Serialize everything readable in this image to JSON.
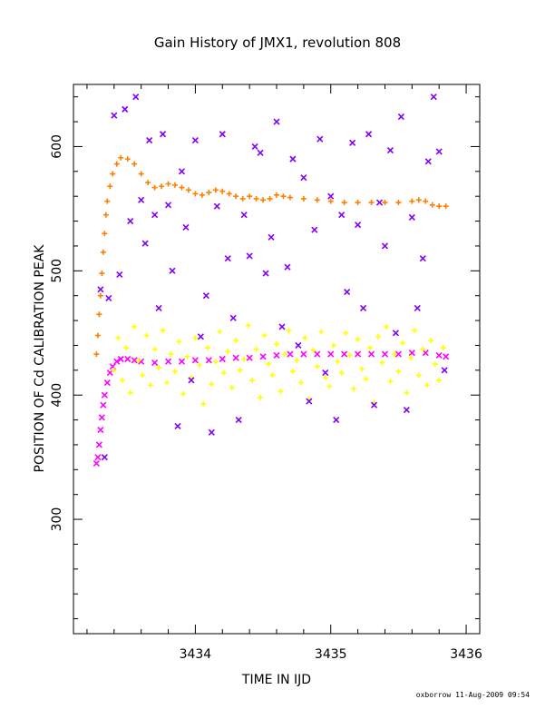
{
  "chart_data": {
    "type": "scatter",
    "title": "Gain History of JMX1, revolution 808",
    "xlabel": "TIME IN IJD",
    "ylabel": "POSITION OF Cd CALIBRATION PEAK",
    "xlim": [
      3433.1,
      3436.1
    ],
    "ylim": [
      208,
      650
    ],
    "xticks": [
      3434,
      3435,
      3436
    ],
    "xtick_labels": [
      "3434",
      "3435",
      "3436"
    ],
    "yticks": [
      300,
      400,
      500,
      600
    ],
    "ytick_labels": [
      "300",
      "400",
      "500",
      "600"
    ],
    "footer": "oxborrow 11-Aug-2009 09:54",
    "colors": {
      "orange": "#ff7f00",
      "magenta": "#ff00ff",
      "yellow": "#ffff00",
      "purple": "#7f00ff"
    },
    "series": [
      {
        "marker": "plus",
        "color": "#ff7f00",
        "x": [
          3433.27,
          3433.28,
          3433.29,
          3433.3,
          3433.31,
          3433.32,
          3433.33,
          3433.34,
          3433.35,
          3433.37,
          3433.39,
          3433.42,
          3433.45,
          3433.5,
          3433.55,
          3433.6,
          3433.65,
          3433.7,
          3433.75,
          3433.8,
          3433.85,
          3433.9,
          3433.95,
          3434.0,
          3434.05,
          3434.1,
          3434.15,
          3434.2,
          3434.25,
          3434.3,
          3434.35,
          3434.4,
          3434.45,
          3434.5,
          3434.55,
          3434.6,
          3434.65,
          3434.7,
          3434.8,
          3434.9,
          3435.0,
          3435.1,
          3435.2,
          3435.3,
          3435.4,
          3435.5,
          3435.6,
          3435.65,
          3435.7,
          3435.75,
          3435.8,
          3435.85
        ],
        "y": [
          433,
          448,
          465,
          480,
          498,
          515,
          530,
          545,
          556,
          568,
          578,
          586,
          591,
          590,
          586,
          578,
          571,
          567,
          568,
          570,
          569,
          567,
          565,
          562,
          561,
          563,
          565,
          564,
          562,
          560,
          558,
          560,
          558,
          557,
          558,
          561,
          560,
          559,
          558,
          557,
          556,
          555,
          555,
          555,
          555,
          555,
          556,
          557,
          556,
          553,
          552,
          552
        ]
      },
      {
        "marker": "cross",
        "color": "#ff00ff",
        "x": [
          3433.27,
          3433.28,
          3433.29,
          3433.3,
          3433.31,
          3433.32,
          3433.33,
          3433.35,
          3433.37,
          3433.39,
          3433.42,
          3433.45,
          3433.5,
          3433.55,
          3433.6,
          3433.7,
          3433.8,
          3433.9,
          3434.0,
          3434.1,
          3434.2,
          3434.3,
          3434.4,
          3434.5,
          3434.6,
          3434.7,
          3434.8,
          3434.9,
          3435.0,
          3435.1,
          3435.2,
          3435.3,
          3435.4,
          3435.5,
          3435.6,
          3435.7,
          3435.8,
          3435.85
        ],
        "y": [
          345,
          350,
          360,
          372,
          382,
          392,
          400,
          410,
          418,
          423,
          427,
          429,
          429,
          428,
          427,
          426,
          427,
          427,
          428,
          428,
          429,
          430,
          430,
          431,
          432,
          433,
          433,
          433,
          433,
          433,
          433,
          433,
          433,
          433,
          434,
          434,
          432,
          431
        ]
      },
      {
        "marker": "plus",
        "color": "#ffff00",
        "x": [
          3433.4,
          3433.43,
          3433.46,
          3433.49,
          3433.52,
          3433.55,
          3433.58,
          3433.61,
          3433.64,
          3433.67,
          3433.7,
          3433.73,
          3433.76,
          3433.79,
          3433.82,
          3433.85,
          3433.88,
          3433.91,
          3433.94,
          3433.97,
          3434.0,
          3434.03,
          3434.06,
          3434.09,
          3434.12,
          3434.15,
          3434.18,
          3434.21,
          3434.24,
          3434.27,
          3434.3,
          3434.33,
          3434.36,
          3434.39,
          3434.42,
          3434.45,
          3434.48,
          3434.51,
          3434.54,
          3434.57,
          3434.6,
          3434.63,
          3434.66,
          3434.69,
          3434.72,
          3434.75,
          3434.78,
          3434.81,
          3434.84,
          3434.87,
          3434.9,
          3434.93,
          3434.96,
          3434.99,
          3435.02,
          3435.05,
          3435.08,
          3435.11,
          3435.14,
          3435.17,
          3435.2,
          3435.23,
          3435.26,
          3435.29,
          3435.32,
          3435.35,
          3435.38,
          3435.41,
          3435.44,
          3435.47,
          3435.5,
          3435.53,
          3435.56,
          3435.59,
          3435.62,
          3435.65,
          3435.68,
          3435.71,
          3435.74,
          3435.77,
          3435.8,
          3435.83
        ],
        "y": [
          420,
          446,
          412,
          438,
          402,
          455,
          428,
          416,
          448,
          408,
          437,
          422,
          452,
          410,
          433,
          419,
          443,
          401,
          431,
          414,
          446,
          424,
          393,
          438,
          409,
          427,
          451,
          418,
          435,
          406,
          444,
          420,
          429,
          456,
          412,
          437,
          398,
          448,
          425,
          416,
          441,
          403,
          433,
          452,
          419,
          428,
          410,
          446,
          397,
          436,
          423,
          451,
          414,
          407,
          440,
          427,
          418,
          450,
          432,
          405,
          445,
          421,
          413,
          438,
          394,
          447,
          426,
          455,
          411,
          433,
          419,
          442,
          402,
          430,
          452,
          416,
          437,
          408,
          444,
          425,
          412,
          438
        ]
      },
      {
        "marker": "cross",
        "color": "#7f00ff",
        "x": [
          3433.3,
          3433.33,
          3433.36,
          3433.4,
          3433.44,
          3433.48,
          3433.52,
          3433.56,
          3433.6,
          3433.63,
          3433.66,
          3433.7,
          3433.73,
          3433.76,
          3433.8,
          3433.83,
          3433.87,
          3433.9,
          3433.93,
          3433.97,
          3434.0,
          3434.04,
          3434.08,
          3434.12,
          3434.16,
          3434.2,
          3434.24,
          3434.28,
          3434.32,
          3434.36,
          3434.4,
          3434.44,
          3434.48,
          3434.52,
          3434.56,
          3434.6,
          3434.64,
          3434.68,
          3434.72,
          3434.76,
          3434.8,
          3434.84,
          3434.88,
          3434.92,
          3434.96,
          3435.0,
          3435.04,
          3435.08,
          3435.12,
          3435.16,
          3435.2,
          3435.24,
          3435.28,
          3435.32,
          3435.36,
          3435.4,
          3435.44,
          3435.48,
          3435.52,
          3435.56,
          3435.6,
          3435.64,
          3435.68,
          3435.72,
          3435.76,
          3435.8,
          3435.84
        ],
        "y": [
          485,
          350,
          478,
          625,
          497,
          630,
          540,
          640,
          557,
          522,
          605,
          545,
          470,
          610,
          553,
          500,
          375,
          580,
          535,
          412,
          605,
          447,
          480,
          370,
          552,
          610,
          510,
          462,
          380,
          545,
          512,
          600,
          595,
          498,
          527,
          620,
          455,
          503,
          590,
          440,
          575,
          395,
          533,
          606,
          418,
          560,
          380,
          545,
          483,
          603,
          537,
          470,
          610,
          392,
          555,
          520,
          597,
          450,
          624,
          388,
          543,
          470,
          510,
          588,
          640,
          596,
          420
        ]
      }
    ]
  }
}
